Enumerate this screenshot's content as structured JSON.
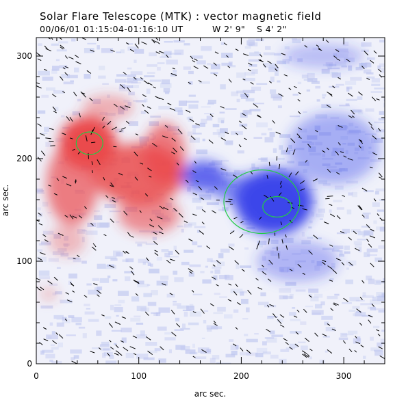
{
  "chart_data": {
    "type": "heatmap",
    "title": "Solar Flare Telescope (MTK) : vector magnetic field",
    "subtitle": {
      "date": "00/06/01",
      "time_range": "01:15:04-01:16:10 UT",
      "longitude": "W 2' 9\"",
      "latitude": "S 4' 2\""
    },
    "xlabel": "arc sec.",
    "ylabel": "arc sec.",
    "xlim": [
      0,
      340
    ],
    "ylim": [
      0,
      318
    ],
    "x_ticks": [
      0,
      100,
      200,
      300
    ],
    "y_ticks": [
      0,
      100,
      200,
      300
    ],
    "colors": {
      "positive_polarity": "#e8383a",
      "negative_polarity": "#2a35e8",
      "background_noise": "#b8c0ee",
      "transverse_vectors": "#000000",
      "contour": "#22cc44"
    },
    "regions": [
      {
        "polarity": "positive",
        "x": 50,
        "y": 215,
        "rx": 28,
        "ry": 26,
        "intensity": 1.0
      },
      {
        "polarity": "positive",
        "x": 100,
        "y": 185,
        "rx": 45,
        "ry": 30,
        "intensity": 0.85
      },
      {
        "polarity": "positive",
        "x": 35,
        "y": 175,
        "rx": 25,
        "ry": 40,
        "intensity": 0.7
      },
      {
        "polarity": "positive",
        "x": 110,
        "y": 145,
        "rx": 30,
        "ry": 18,
        "intensity": 0.6
      },
      {
        "polarity": "positive",
        "x": 125,
        "y": 205,
        "rx": 20,
        "ry": 30,
        "intensity": 0.7
      },
      {
        "polarity": "positive",
        "x": 70,
        "y": 250,
        "rx": 25,
        "ry": 12,
        "intensity": 0.4
      },
      {
        "polarity": "positive",
        "x": 30,
        "y": 120,
        "rx": 18,
        "ry": 15,
        "intensity": 0.35
      },
      {
        "polarity": "positive",
        "x": 12,
        "y": 68,
        "rx": 8,
        "ry": 6,
        "intensity": 0.35
      },
      {
        "polarity": "negative",
        "x": 232,
        "y": 158,
        "rx": 38,
        "ry": 32,
        "intensity": 1.0
      },
      {
        "polarity": "negative",
        "x": 163,
        "y": 183,
        "rx": 22,
        "ry": 15,
        "intensity": 0.8
      },
      {
        "polarity": "negative",
        "x": 200,
        "y": 170,
        "rx": 28,
        "ry": 14,
        "intensity": 0.6
      },
      {
        "polarity": "negative",
        "x": 290,
        "y": 210,
        "rx": 45,
        "ry": 35,
        "intensity": 0.4
      },
      {
        "polarity": "negative",
        "x": 255,
        "y": 100,
        "rx": 40,
        "ry": 20,
        "intensity": 0.35
      },
      {
        "polarity": "negative",
        "x": 280,
        "y": 300,
        "rx": 40,
        "ry": 12,
        "intensity": 0.3
      }
    ],
    "contours": [
      {
        "cx": 52,
        "cy": 215,
        "rx": 13,
        "ry": 11
      },
      {
        "cx": 220,
        "cy": 158,
        "rx": 37,
        "ry": 31
      },
      {
        "cx": 235,
        "cy": 153,
        "rx": 14,
        "ry": 10
      }
    ]
  }
}
